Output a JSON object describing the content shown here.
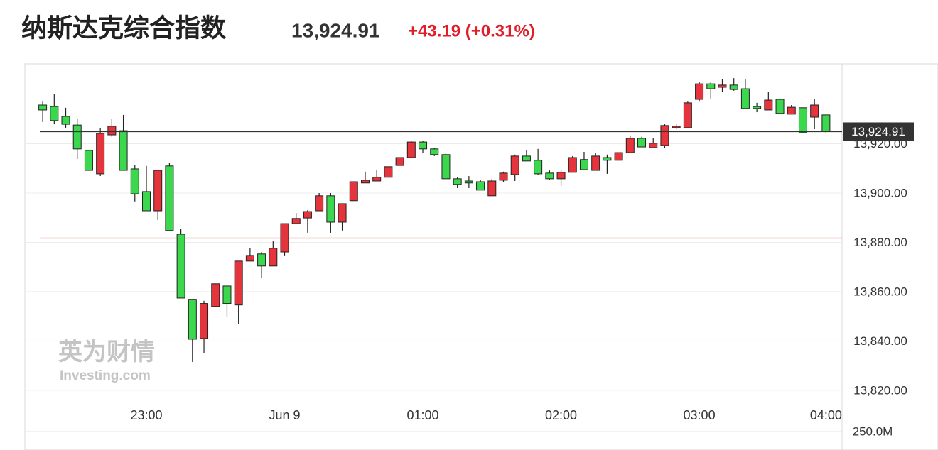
{
  "chart_data": {
    "type": "candlestick",
    "title": "纳斯达克综合指数",
    "price_label": "13,924.91",
    "change_label": "+43.19 (+0.31%)",
    "watermark": "英为财情",
    "watermark_sub": "Investing.com",
    "volume_label": "250.0M",
    "up_color": "#e5343c",
    "down_color": "#3bd74c",
    "ylim": [
      13814.2,
      13952.4
    ],
    "yticks": [
      {
        "value": 13820,
        "label": "13,820.00"
      },
      {
        "value": 13840,
        "label": "13,840.00"
      },
      {
        "value": 13860,
        "label": "13,860.00"
      },
      {
        "value": 13880,
        "label": "13,880.00"
      },
      {
        "value": 13900,
        "label": "13,900.00"
      },
      {
        "value": 13920,
        "label": "13,920.00"
      }
    ],
    "grid": true,
    "last_price": {
      "value": 13924.91,
      "label": "13,924.91"
    },
    "prev_close": 13881.72,
    "categories": [
      null,
      null,
      null,
      null,
      null,
      null,
      null,
      null,
      null,
      "23:00",
      null,
      null,
      null,
      null,
      null,
      null,
      null,
      null,
      null,
      null,
      null,
      "Jun 9",
      null,
      null,
      null,
      null,
      null,
      null,
      null,
      null,
      null,
      null,
      null,
      "01:00",
      null,
      null,
      null,
      null,
      null,
      null,
      null,
      null,
      null,
      null,
      null,
      "02:00",
      null,
      null,
      null,
      null,
      null,
      null,
      null,
      null,
      null,
      null,
      null,
      "03:00",
      null,
      null,
      null,
      null,
      null,
      null,
      null,
      null,
      null,
      null,
      "04:00"
    ],
    "open": [
      13935.7,
      13935.1,
      13931.1,
      13927.6,
      13917.3,
      13907.8,
      13923.6,
      13925.3,
      13909.8,
      13900.6,
      13892.8,
      13911.0,
      13883.3,
      13856.9,
      13841.0,
      13854.0,
      13862.3,
      13854.6,
      13872.4,
      13875.3,
      13870.4,
      13876.1,
      13887.6,
      13889.9,
      13892.8,
      13898.9,
      13888.2,
      13896.9,
      13904.1,
      13904.9,
      13906.4,
      13911.2,
      13914.4,
      13920.7,
      13917.9,
      13915.6,
      13905.8,
      13904.9,
      13904.6,
      13898.9,
      13905.2,
      13907.5,
      13915.0,
      13913.3,
      13908.1,
      13905.8,
      13908.4,
      13913.6,
      13909.2,
      13914.4,
      13913.3,
      13916.4,
      13922.2,
      13918.4,
      13919.3,
      13926.5,
      13926.5,
      13938.0,
      13944.3,
      13942.9,
      13943.8,
      13942.3,
      13935.1,
      13933.7,
      13938.0,
      13932.0,
      13934.6,
      13930.8,
      13931.7
    ],
    "high": [
      13937.1,
      13940.3,
      13934.6,
      13930.0,
      13917.3,
      13926.5,
      13930.0,
      13931.7,
      13911.5,
      13911.0,
      13909.2,
      13912.1,
      13885.3,
      13856.9,
      13856.3,
      13863.2,
      13862.3,
      13872.4,
      13877.6,
      13876.1,
      13880.4,
      13887.6,
      13891.9,
      13893.1,
      13900.0,
      13900.0,
      13895.7,
      13904.6,
      13908.7,
      13909.2,
      13910.7,
      13914.4,
      13921.3,
      13921.3,
      13918.4,
      13916.4,
      13906.4,
      13906.9,
      13905.5,
      13905.8,
      13908.7,
      13915.6,
      13917.3,
      13917.9,
      13909.2,
      13909.2,
      13915.0,
      13916.7,
      13916.4,
      13915.6,
      13916.4,
      13923.1,
      13922.8,
      13922.2,
      13927.9,
      13927.9,
      13937.1,
      13945.2,
      13945.2,
      13946.1,
      13946.6,
      13946.1,
      13936.6,
      13940.9,
      13938.6,
      13935.7,
      13934.6,
      13938.0,
      13931.7
    ],
    "low": [
      13928.8,
      13927.9,
      13926.5,
      13913.8,
      13909.2,
      13906.9,
      13922.8,
      13909.2,
      13896.6,
      13892.8,
      13889.1,
      13884.8,
      13857.4,
      13831.5,
      13835.0,
      13854.0,
      13850.0,
      13846.8,
      13872.4,
      13865.5,
      13870.4,
      13874.7,
      13887.6,
      13883.9,
      13892.8,
      13883.9,
      13884.8,
      13896.9,
      13904.1,
      13904.9,
      13906.4,
      13911.2,
      13914.4,
      13916.4,
      13915.0,
      13905.8,
      13902.0,
      13902.0,
      13901.2,
      13898.9,
      13904.6,
      13904.9,
      13913.0,
      13907.2,
      13905.2,
      13902.9,
      13908.4,
      13909.2,
      13909.2,
      13907.8,
      13913.3,
      13916.4,
      13918.7,
      13918.4,
      13918.4,
      13925.9,
      13926.5,
      13937.1,
      13938.0,
      13940.9,
      13941.5,
      13934.3,
      13932.8,
      13933.7,
      13932.3,
      13932.0,
      13924.5,
      13925.9,
      13924.5
    ],
    "close": [
      13933.7,
      13929.4,
      13927.9,
      13917.9,
      13909.2,
      13924.2,
      13927.1,
      13909.2,
      13899.7,
      13892.8,
      13909.2,
      13884.8,
      13857.4,
      13840.7,
      13855.2,
      13863.2,
      13855.2,
      13872.4,
      13874.7,
      13870.4,
      13877.6,
      13887.6,
      13889.7,
      13892.5,
      13898.9,
      13888.2,
      13895.7,
      13904.6,
      13905.2,
      13906.4,
      13910.7,
      13914.4,
      13920.7,
      13917.9,
      13915.6,
      13905.8,
      13903.5,
      13904.1,
      13901.2,
      13904.9,
      13908.1,
      13915.0,
      13913.0,
      13907.8,
      13905.8,
      13908.4,
      13914.4,
      13909.5,
      13915.0,
      13913.3,
      13916.4,
      13922.2,
      13918.7,
      13920.2,
      13927.4,
      13927.1,
      13936.6,
      13944.3,
      13942.3,
      13943.8,
      13942.0,
      13934.3,
      13934.3,
      13937.7,
      13932.3,
      13934.8,
      13924.5,
      13935.7,
      13924.91
    ]
  }
}
